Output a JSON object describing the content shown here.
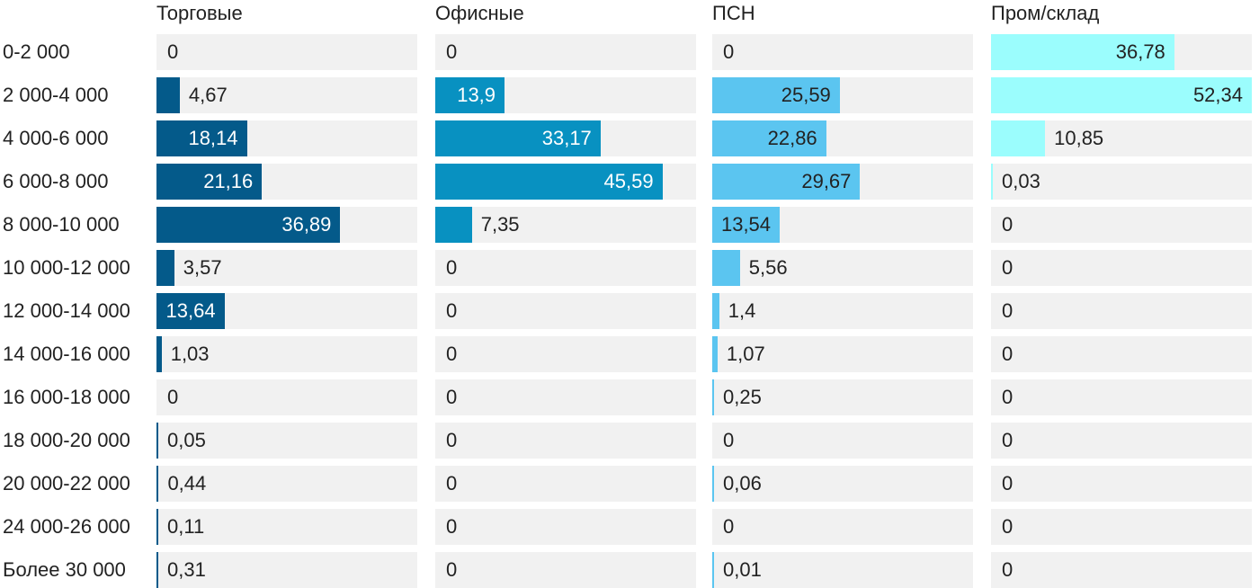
{
  "chart_data": {
    "type": "bar",
    "orientation": "horizontal",
    "layout": "small-multiples",
    "categories": [
      "0-2 000",
      "2 000-4 000",
      "4 000-6 000",
      "6 000-8 000",
      "8 000-10 000",
      "10 000-12 000",
      "12 000-14 000",
      "14 000-16 000",
      "16 000-18 000",
      "18 000-20 000",
      "20 000-22 000",
      "24 000-26 000",
      "Более 30 000"
    ],
    "series": [
      {
        "name": "Торговые",
        "color": "#045a8a",
        "values": [
          0,
          4.67,
          18.14,
          21.16,
          36.89,
          3.57,
          13.64,
          1.03,
          0,
          0.05,
          0.44,
          0.11,
          0.31
        ],
        "labels": [
          "0",
          "4,67",
          "18,14",
          "21,16",
          "36,89",
          "3,57",
          "13,64",
          "1,03",
          "0",
          "0,05",
          "0,44",
          "0,11",
          "0,31"
        ]
      },
      {
        "name": "Офисные",
        "color": "#0891c1",
        "values": [
          0,
          13.9,
          33.17,
          45.59,
          7.35,
          0,
          0,
          0,
          0,
          0,
          0,
          0,
          0
        ],
        "labels": [
          "0",
          "13,9",
          "33,17",
          "45,59",
          "7,35",
          "0",
          "0",
          "0",
          "0",
          "0",
          "0",
          "0",
          "0"
        ]
      },
      {
        "name": "ПСН",
        "color": "#5bc5f0",
        "values": [
          0,
          25.59,
          22.86,
          29.67,
          13.54,
          5.56,
          1.4,
          1.07,
          0.25,
          0,
          0.06,
          0,
          0.01
        ],
        "labels": [
          "0",
          "25,59",
          "22,86",
          "29,67",
          "13,54",
          "5,56",
          "1,4",
          "1,07",
          "0,25",
          "0",
          "0,06",
          "0",
          "0,01"
        ]
      },
      {
        "name": "Пром/склад",
        "color": "#9bfdfd",
        "values": [
          36.78,
          52.34,
          10.85,
          0.03,
          0,
          0,
          0,
          0,
          0,
          0,
          0,
          0,
          0
        ],
        "labels": [
          "36,78",
          "52,34",
          "10,85",
          "0,03",
          "0",
          "0",
          "0",
          "0",
          "0",
          "0",
          "0",
          "0",
          "0"
        ]
      }
    ],
    "label_color_on_bar": [
      "#ffffff",
      "#ffffff",
      "#222222",
      "#222222"
    ],
    "xlim": [
      0,
      52.34
    ],
    "grid": false,
    "legend": "none"
  }
}
